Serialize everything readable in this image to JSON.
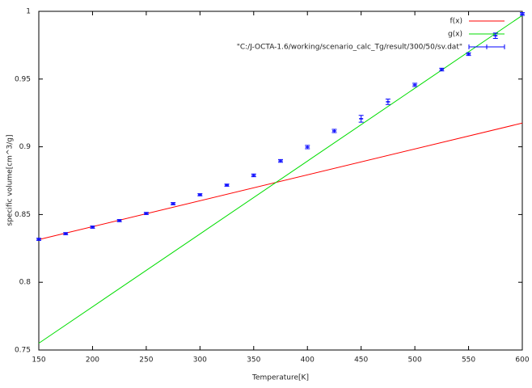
{
  "chart_data": {
    "type": "line",
    "x_label": "Temperature[K]",
    "y_label": "specific volume[cm^3/g]",
    "xlim": [
      150,
      600
    ],
    "xticks": [
      150,
      200,
      250,
      300,
      350,
      400,
      450,
      500,
      550,
      600
    ],
    "ylim": [
      0.75,
      1
    ],
    "yticks": [
      0.75,
      0.8,
      0.85,
      0.9,
      0.95,
      1
    ],
    "grid": false,
    "legend": "top-right",
    "series": [
      {
        "name": "f(x)",
        "color": "#ff0000",
        "style": "line",
        "x": [
          150,
          600
        ],
        "values": [
          0.8315,
          0.9175
        ]
      },
      {
        "name": "g(x)",
        "color": "#00dd00",
        "style": "line",
        "x": [
          150,
          600
        ],
        "values": [
          0.755,
          0.997
        ]
      },
      {
        "name": "\"C:/J-OCTA-1.6/working/scenario_calc_Tg/result/300/50/sv.dat\"",
        "color": "#0000ff",
        "style": "errorbars",
        "x": [
          150,
          175,
          200,
          225,
          250,
          275,
          300,
          325,
          350,
          375,
          400,
          425,
          450,
          475,
          500,
          525,
          550,
          575,
          600
        ],
        "values": [
          0.8317,
          0.8359,
          0.8407,
          0.8455,
          0.8508,
          0.858,
          0.8646,
          0.8717,
          0.8789,
          0.8896,
          0.8998,
          0.9117,
          0.9207,
          0.9332,
          0.9457,
          0.957,
          0.9684,
          0.982,
          0.998
        ],
        "errors": [
          0.0008,
          0.0008,
          0.0008,
          0.0008,
          0.0008,
          0.0008,
          0.0008,
          0.0008,
          0.001,
          0.001,
          0.0012,
          0.0012,
          0.0025,
          0.002,
          0.0012,
          0.001,
          0.001,
          0.002,
          0.001
        ]
      }
    ]
  }
}
